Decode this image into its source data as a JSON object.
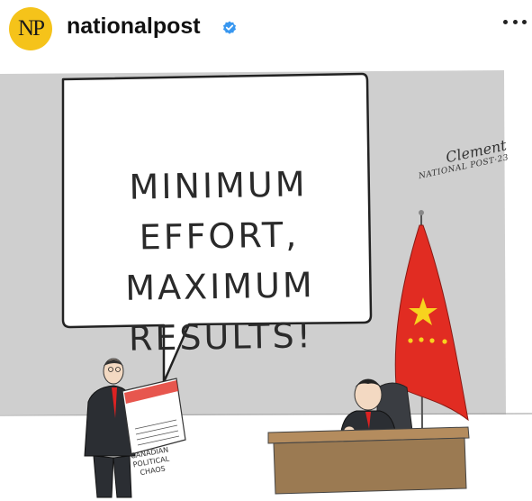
{
  "header": {
    "logo_text": "NP",
    "username": "nationalpost",
    "verified_icon": "verified-badge-icon",
    "more_icon": "more-options-icon"
  },
  "cartoon": {
    "speech_lines": [
      "MINIMUM",
      "EFFORT,",
      "MAXIMUM",
      "RESULTS!"
    ],
    "signature_name": "Clement",
    "signature_source": "NATIONAL POST·23",
    "newspaper_lines": [
      "CANADIAN",
      "POLITICAL",
      "CHAOS"
    ]
  },
  "colors": {
    "logo_bg": "#f5c31a",
    "verified": "#3897f0",
    "flag_red": "#e12c22",
    "flag_star": "#f7d31e",
    "backdrop_gray": "#cfcfcf",
    "desk_brown": "#9b7a52"
  }
}
